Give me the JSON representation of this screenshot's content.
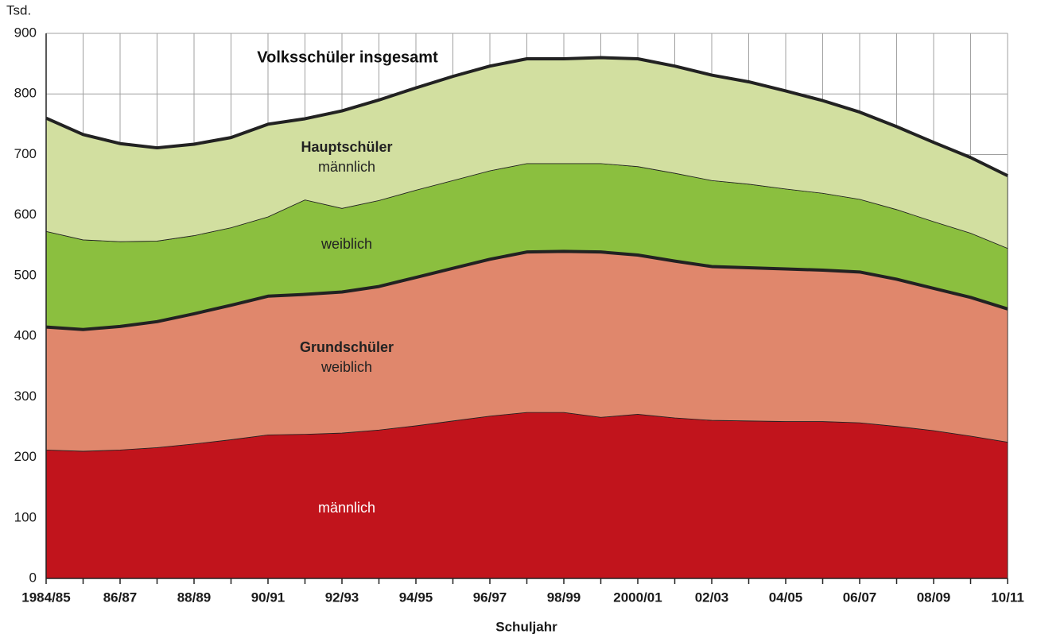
{
  "chart_data": {
    "type": "stacked_area",
    "y_label": "Tsd.",
    "x_label": "Schuljahr",
    "categories": [
      "1984/85",
      null,
      "86/87",
      null,
      "88/89",
      null,
      "90/91",
      null,
      "92/93",
      null,
      "94/95",
      null,
      "96/97",
      null,
      "98/99",
      null,
      "2000/01",
      null,
      "02/03",
      null,
      "04/05",
      null,
      "06/07",
      null,
      "08/09",
      null,
      "10/11"
    ],
    "series": [
      {
        "color": "#c1141c",
        "values": [
          212,
          210,
          212,
          216,
          222,
          229,
          237,
          238,
          240,
          245,
          252,
          260,
          268,
          274,
          274,
          266,
          271,
          265,
          261,
          260,
          259,
          259,
          257,
          251,
          244,
          235,
          225
        ]
      },
      {
        "color": "#e0876c",
        "values": [
          203,
          201,
          204,
          208,
          215,
          222,
          229,
          231,
          233,
          237,
          245,
          252,
          259,
          265,
          266,
          273,
          263,
          259,
          254,
          253,
          252,
          250,
          249,
          243,
          235,
          229,
          220
        ]
      },
      {
        "color": "#8bbf3f",
        "values": [
          158,
          148,
          140,
          133,
          129,
          128,
          131,
          156,
          138,
          142,
          144,
          145,
          146,
          146,
          145,
          146,
          146,
          145,
          142,
          138,
          132,
          127,
          120,
          115,
          110,
          106,
          100
        ]
      },
      {
        "color": "#d2dfa0",
        "values": [
          187,
          174,
          162,
          154,
          151,
          149,
          153,
          134,
          161,
          166,
          169,
          172,
          173,
          173,
          173,
          175,
          178,
          177,
          174,
          169,
          162,
          153,
          144,
          137,
          131,
          125,
          120
        ]
      }
    ],
    "annotations": [
      "Volksschüler insgesamt",
      "Hauptschüler",
      "männlich",
      "weiblich",
      "Grundschüler",
      "weiblich",
      "männlich"
    ],
    "ylim": [
      0,
      900
    ],
    "yticks": [
      0,
      100,
      200,
      300,
      400,
      500,
      600,
      700,
      800,
      900
    ],
    "grid": true
  }
}
